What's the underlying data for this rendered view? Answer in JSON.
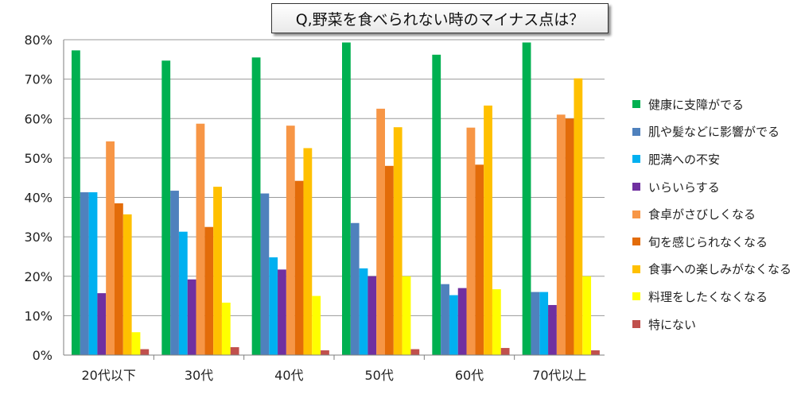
{
  "chart_data": {
    "type": "bar",
    "title": "Q,野菜を食べられない時のマイナス点は？",
    "categories": [
      "20代以下",
      "30代",
      "40代",
      "50代",
      "60代",
      "70代以上"
    ],
    "y_ticks": [
      "0%",
      "10%",
      "20%",
      "30%",
      "40%",
      "50%",
      "60%",
      "70%",
      "80%"
    ],
    "ylim": [
      0,
      80
    ],
    "grid": true,
    "legend_position": "right",
    "series": [
      {
        "name": "健康に支障がでる",
        "color": "#00b050",
        "values": [
          77.3,
          74.7,
          75.5,
          79.3,
          76.2,
          79.3
        ]
      },
      {
        "name": "肌や髪などに影響がでる",
        "color": "#4f81bd",
        "values": [
          41.3,
          41.7,
          41.0,
          33.5,
          18.0,
          16.0
        ]
      },
      {
        "name": "肥満への不安",
        "color": "#00b0f0",
        "values": [
          41.3,
          31.3,
          24.8,
          22.0,
          15.2,
          16.0
        ]
      },
      {
        "name": "いらいらする",
        "color": "#7030a0",
        "values": [
          15.7,
          19.2,
          21.7,
          20.0,
          17.0,
          12.7
        ]
      },
      {
        "name": "食卓がさびしくなる",
        "color": "#f79646",
        "values": [
          54.2,
          58.7,
          58.2,
          62.5,
          57.7,
          61.0
        ]
      },
      {
        "name": "旬を感じられなくなる",
        "color": "#e36c09",
        "values": [
          38.5,
          32.5,
          44.2,
          48.0,
          48.3,
          60.0
        ]
      },
      {
        "name": "食事への楽しみがなくなる",
        "color": "#ffc000",
        "values": [
          35.7,
          42.7,
          52.5,
          57.8,
          63.3,
          70.2
        ]
      },
      {
        "name": "料理をしたくなくなる",
        "color": "#ffff00",
        "values": [
          5.8,
          13.3,
          15.0,
          20.0,
          16.7,
          20.0
        ]
      },
      {
        "name": "特にない",
        "color": "#c0504d",
        "values": [
          1.5,
          2.0,
          1.2,
          1.5,
          1.8,
          1.2
        ]
      }
    ]
  }
}
